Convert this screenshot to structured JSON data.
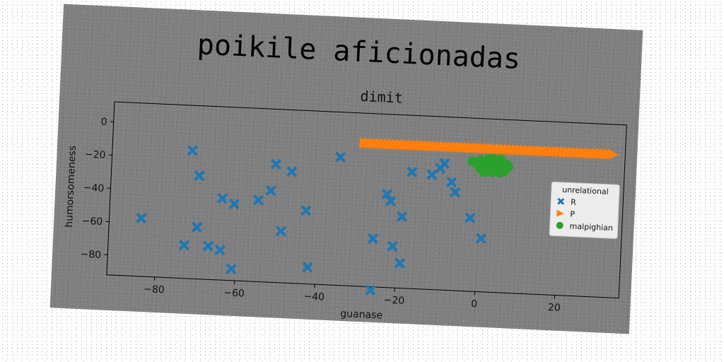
{
  "chart_data": {
    "type": "scatter",
    "title": "poikile aficionadas",
    "subtitle": "dimit",
    "xlabel": "guanase",
    "ylabel": "humorsomeness",
    "xlim": [
      -92,
      36
    ],
    "ylim": [
      -92,
      12
    ],
    "xticks": [
      -80,
      -60,
      -40,
      -20,
      0,
      20
    ],
    "yticks": [
      0,
      -20,
      -40,
      -60,
      -80
    ],
    "grid": false,
    "legend": {
      "title": "unrelational",
      "placement": "right"
    },
    "series": [
      {
        "name": "R",
        "marker": "x",
        "color": "#1f77b4",
        "x": [
          -72,
          -70,
          -84,
          -70,
          -73,
          -67,
          -64,
          -64,
          -61,
          -61,
          -55,
          -52,
          -51,
          -49,
          -47,
          -43,
          -42,
          -35,
          -26,
          -26,
          -23,
          -22,
          -21,
          -19,
          -19,
          -17,
          -12,
          -10,
          -9,
          -7,
          -6,
          -2,
          1
        ],
        "y": [
          -15,
          -30,
          -57,
          -61,
          -72,
          -72,
          -74,
          -43,
          -46,
          -85,
          -43,
          -37,
          -21,
          -61,
          -25,
          -48,
          -82,
          -15,
          -63,
          -94,
          -36,
          -40,
          -67,
          -77,
          -49,
          -22,
          -23,
          -19,
          -16,
          -27,
          -33,
          -48,
          -60
        ]
      },
      {
        "name": "P",
        "marker": "triangle-right",
        "color": "#ff7f0e",
        "x": [
          -29,
          -28,
          -27,
          -26,
          -25,
          -24,
          -23,
          -22,
          -21,
          -20,
          -19,
          -18,
          -17,
          -16,
          -15,
          -14,
          -13,
          -12,
          -11,
          -10,
          -9,
          -8,
          -7,
          -6,
          -5,
          -4,
          -3,
          -2,
          -1,
          0,
          1,
          2,
          3,
          4,
          5,
          6,
          7,
          8,
          9,
          10,
          11,
          12,
          13,
          14,
          15,
          16,
          17,
          18,
          19,
          20,
          21,
          22,
          23,
          24,
          25,
          26,
          27,
          28,
          29,
          30,
          31,
          32,
          33
        ],
        "y": [
          -6,
          -6,
          -6,
          -6,
          -6,
          -6,
          -6,
          -6,
          -6,
          -6,
          -6,
          -6,
          -6,
          -6,
          -6,
          -6,
          -6,
          -6,
          -6,
          -6,
          -6,
          -6,
          -6,
          -6,
          -6,
          -6,
          -6,
          -6,
          -6,
          -6,
          -6,
          -6,
          -6,
          -6,
          -6,
          -6,
          -6,
          -6,
          -6,
          -6,
          -6,
          -6,
          -6,
          -6,
          -6,
          -6,
          -6,
          -6,
          -6,
          -6,
          -6,
          -6,
          -6,
          -6,
          -6,
          -6,
          -6,
          -6,
          -6,
          -6,
          -6,
          -6,
          -6
        ]
      },
      {
        "name": "malpighian",
        "marker": "circle",
        "color": "#2ca02c",
        "x": [
          -2,
          -1,
          0,
          0.5,
          1,
          1.5,
          2,
          2.5,
          3,
          3.5,
          4,
          4.5,
          5,
          5.5,
          6,
          6.5,
          7,
          0,
          1,
          2,
          3,
          4,
          5,
          6,
          2,
          3,
          4,
          5,
          1,
          3,
          5,
          6
        ],
        "y": [
          -14,
          -15,
          -13,
          -16,
          -14,
          -17,
          -15,
          -13,
          -16,
          -14,
          -17,
          -15,
          -16,
          -14,
          -17,
          -15,
          -16,
          -18,
          -18,
          -19,
          -19,
          -18,
          -19,
          -18,
          -12,
          -12,
          -13,
          -12,
          -20,
          -20,
          -20,
          -19
        ]
      }
    ]
  }
}
